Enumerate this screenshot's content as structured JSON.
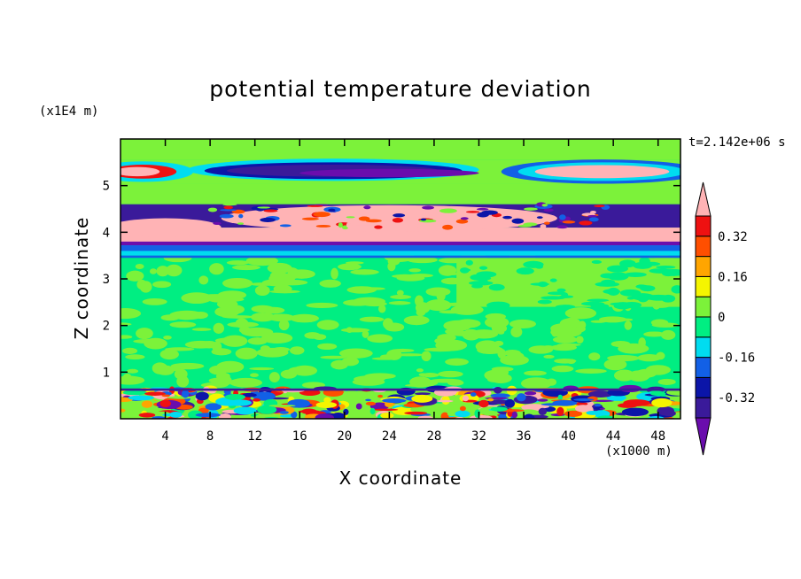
{
  "chart_data": {
    "type": "heatmap",
    "title": "potential temperature deviation",
    "xlabel": "X coordinate",
    "ylabel": "Z coordinate",
    "x_unit": "(x1000 m)",
    "y_unit": "(x1E4 m)",
    "time_label": "t=2.142e+06 s",
    "xlim": [
      0,
      50
    ],
    "ylim": [
      0,
      6
    ],
    "x_ticks": [
      4,
      8,
      12,
      16,
      20,
      24,
      28,
      32,
      36,
      40,
      44,
      48
    ],
    "y_ticks": [
      1,
      2,
      3,
      4,
      5
    ],
    "colorbar": {
      "levels": [
        -0.4,
        -0.32,
        -0.24,
        -0.16,
        -0.08,
        0,
        0.08,
        0.16,
        0.24,
        0.32,
        0.4
      ],
      "tick_labels": [
        "0.32",
        "0.16",
        "0",
        "-0.16",
        "-0.32"
      ],
      "tick_values": [
        0.32,
        0.16,
        0,
        -0.16,
        -0.32
      ],
      "colors_bottom_to_top": [
        "#6a0dad",
        "#3a1a9a",
        "#0b15a8",
        "#1260e6",
        "#00dcf0",
        "#00ee82",
        "#7cf23a",
        "#f5f500",
        "#ffa500",
        "#ff4f00",
        "#ee1111",
        "#ffb3b5"
      ],
      "extend": "both"
    },
    "bands": [
      {
        "z": [
          0.0,
          0.65
        ],
        "field": "mixed small-scale anomalies (-0.40 to 0.40)"
      },
      {
        "z": [
          0.65,
          3.5
        ],
        "field": "near zero (-0.08 to 0.08)"
      },
      {
        "z": [
          3.5,
          3.75
        ],
        "field": "thin negative / positive layers"
      },
      {
        "z": [
          3.75,
          4.1
        ],
        "field": "positive (> 0.40)"
      },
      {
        "z": [
          4.1,
          4.6
        ],
        "field": "negative (< -0.40) west and east, positive center"
      },
      {
        "z": [
          4.6,
          5.05
        ],
        "field": "near zero"
      },
      {
        "z": [
          5.05,
          5.55
        ],
        "field": "negative (< -0.40) center, positive edges"
      },
      {
        "z": [
          5.55,
          6.0
        ],
        "field": "near zero"
      }
    ]
  }
}
